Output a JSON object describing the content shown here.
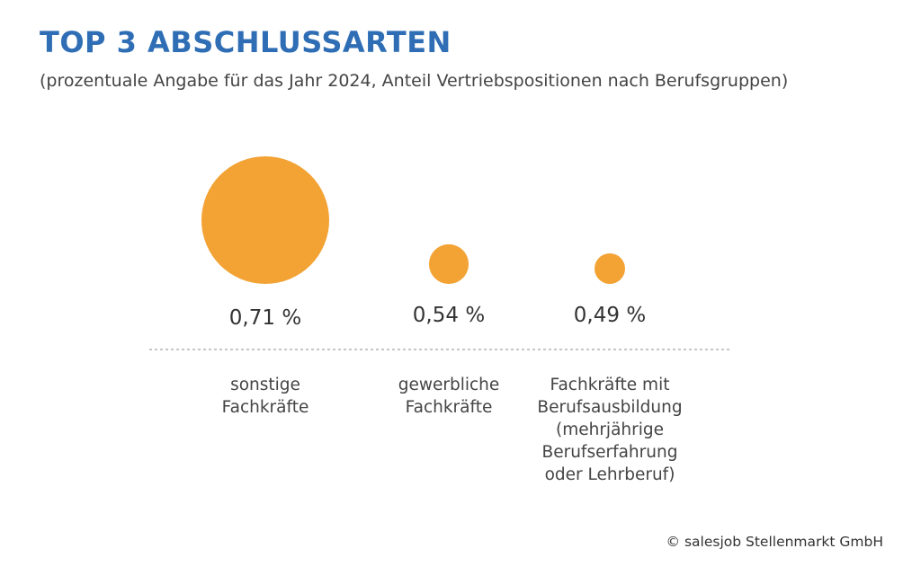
{
  "title": "TOP 3 ABSCHLUSSARTEN",
  "subtitle": "(prozentuale Angabe für das Jahr 2024, Anteil Vertriebspositionen nach Berufsgruppen)",
  "copyright": "© salesjob Stellenmarkt GmbH",
  "colors": {
    "bubble": "#f3a234",
    "title": "#2f6eb5",
    "text": "#444444",
    "divider": "#8c8c8c"
  },
  "chart_data": {
    "type": "bubble",
    "categories": [
      [
        "sonstige",
        "Fachkräfte"
      ],
      [
        "gewerbliche",
        "Fachkräfte"
      ],
      [
        "Fachkräfte mit",
        "Berufsausbildung",
        "(mehrjährige",
        "Berufserfahrung",
        "oder Lehrberuf)"
      ]
    ],
    "values": [
      0.71,
      0.54,
      0.49
    ],
    "value_labels": [
      "0,71 %",
      "0,54 %",
      "0,49 %"
    ],
    "unit": "%"
  }
}
